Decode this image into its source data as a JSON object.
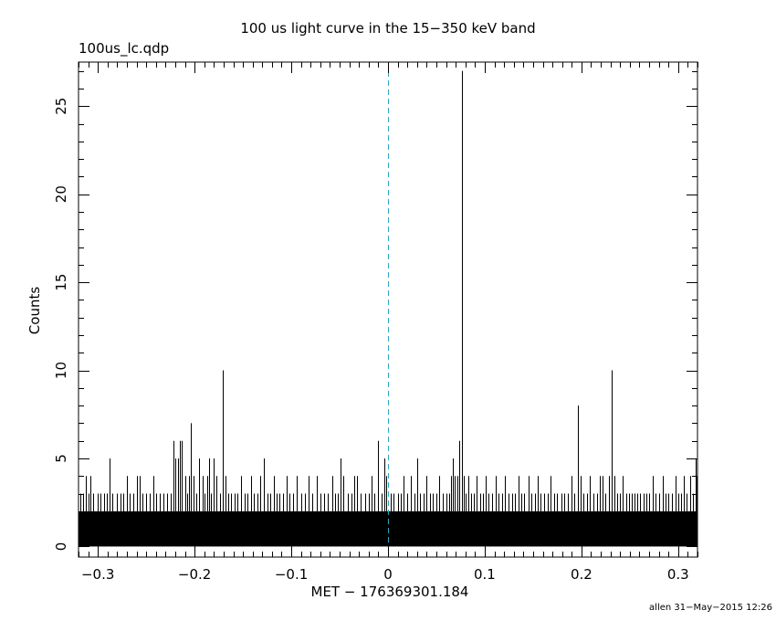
{
  "header": {
    "title": "100 us light curve in the 15−350 keV band",
    "filename": "100us_lc.qdp"
  },
  "footer": {
    "credit": "allen 31−May−2015 12:26"
  },
  "chart_data": {
    "type": "bar",
    "title": "100 us light curve in the 15−350 keV band",
    "xlabel": "MET − 176369301.184",
    "ylabel": "Counts",
    "xlim": [
      -0.32,
      0.32
    ],
    "ylim": [
      -0.6,
      27.5
    ],
    "x_ticks": [
      {
        "value": -0.3,
        "label": "−0.3"
      },
      {
        "value": -0.2,
        "label": "−0.2"
      },
      {
        "value": -0.1,
        "label": "−0.1"
      },
      {
        "value": 0,
        "label": "0"
      },
      {
        "value": 0.1,
        "label": "0.1"
      },
      {
        "value": 0.2,
        "label": "0.2"
      },
      {
        "value": 0.3,
        "label": "0.3"
      }
    ],
    "y_ticks": [
      {
        "value": 0,
        "label": "0"
      },
      {
        "value": 5,
        "label": "5"
      },
      {
        "value": 10,
        "label": "10"
      },
      {
        "value": 15,
        "label": "15"
      },
      {
        "value": 20,
        "label": "20"
      },
      {
        "value": 25,
        "label": "25"
      }
    ],
    "bin_width": 0.0001,
    "baseline_band_counts": 2,
    "reference_line": {
      "x": 0,
      "style": "dashed",
      "color": "#2aa8c0"
    },
    "series": [
      {
        "values": [
          [
            -0.318,
            3
          ],
          [
            -0.315,
            3
          ],
          [
            -0.312,
            4
          ],
          [
            -0.31,
            3
          ],
          [
            -0.308,
            4
          ],
          [
            -0.305,
            3
          ],
          [
            -0.3,
            3
          ],
          [
            -0.297,
            3
          ],
          [
            -0.294,
            3
          ],
          [
            -0.291,
            3
          ],
          [
            -0.288,
            5
          ],
          [
            -0.285,
            3
          ],
          [
            -0.28,
            3
          ],
          [
            -0.277,
            3
          ],
          [
            -0.274,
            3
          ],
          [
            -0.27,
            4
          ],
          [
            -0.267,
            3
          ],
          [
            -0.263,
            3
          ],
          [
            -0.26,
            4
          ],
          [
            -0.257,
            4
          ],
          [
            -0.254,
            3
          ],
          [
            -0.25,
            3
          ],
          [
            -0.246,
            3
          ],
          [
            -0.243,
            4
          ],
          [
            -0.24,
            3
          ],
          [
            -0.236,
            3
          ],
          [
            -0.232,
            3
          ],
          [
            -0.228,
            3
          ],
          [
            -0.225,
            3
          ],
          [
            -0.222,
            6
          ],
          [
            -0.22,
            5
          ],
          [
            -0.217,
            5
          ],
          [
            -0.215,
            6
          ],
          [
            -0.213,
            6
          ],
          [
            -0.21,
            4
          ],
          [
            -0.208,
            3
          ],
          [
            -0.206,
            4
          ],
          [
            -0.204,
            7
          ],
          [
            -0.201,
            4
          ],
          [
            -0.198,
            3
          ],
          [
            -0.195,
            5
          ],
          [
            -0.192,
            4
          ],
          [
            -0.19,
            3
          ],
          [
            -0.187,
            4
          ],
          [
            -0.185,
            5
          ],
          [
            -0.183,
            3
          ],
          [
            -0.18,
            5
          ],
          [
            -0.177,
            4
          ],
          [
            -0.174,
            3
          ],
          [
            -0.171,
            10
          ],
          [
            -0.168,
            4
          ],
          [
            -0.165,
            3
          ],
          [
            -0.162,
            3
          ],
          [
            -0.159,
            3
          ],
          [
            -0.156,
            3
          ],
          [
            -0.152,
            4
          ],
          [
            -0.148,
            3
          ],
          [
            -0.145,
            3
          ],
          [
            -0.142,
            4
          ],
          [
            -0.139,
            3
          ],
          [
            -0.135,
            3
          ],
          [
            -0.132,
            4
          ],
          [
            -0.128,
            5
          ],
          [
            -0.125,
            3
          ],
          [
            -0.122,
            3
          ],
          [
            -0.118,
            4
          ],
          [
            -0.115,
            3
          ],
          [
            -0.112,
            3
          ],
          [
            -0.109,
            3
          ],
          [
            -0.105,
            4
          ],
          [
            -0.102,
            3
          ],
          [
            -0.098,
            3
          ],
          [
            -0.094,
            4
          ],
          [
            -0.09,
            3
          ],
          [
            -0.086,
            3
          ],
          [
            -0.082,
            4
          ],
          [
            -0.078,
            3
          ],
          [
            -0.074,
            4
          ],
          [
            -0.07,
            3
          ],
          [
            -0.066,
            3
          ],
          [
            -0.062,
            3
          ],
          [
            -0.058,
            4
          ],
          [
            -0.055,
            3
          ],
          [
            -0.052,
            3
          ],
          [
            -0.049,
            5
          ],
          [
            -0.046,
            4
          ],
          [
            -0.042,
            3
          ],
          [
            -0.038,
            3
          ],
          [
            -0.035,
            4
          ],
          [
            -0.032,
            4
          ],
          [
            -0.028,
            3
          ],
          [
            -0.024,
            3
          ],
          [
            -0.02,
            3
          ],
          [
            -0.017,
            4
          ],
          [
            -0.014,
            3
          ],
          [
            -0.01,
            6
          ],
          [
            -0.007,
            3
          ],
          [
            -0.004,
            5
          ],
          [
            -0.002,
            4
          ],
          [
            0.003,
            3
          ],
          [
            0.006,
            3
          ],
          [
            0.01,
            3
          ],
          [
            0.013,
            3
          ],
          [
            0.016,
            4
          ],
          [
            0.02,
            3
          ],
          [
            0.024,
            4
          ],
          [
            0.027,
            3
          ],
          [
            0.03,
            5
          ],
          [
            0.033,
            3
          ],
          [
            0.037,
            3
          ],
          [
            0.04,
            4
          ],
          [
            0.043,
            3
          ],
          [
            0.046,
            3
          ],
          [
            0.05,
            3
          ],
          [
            0.053,
            4
          ],
          [
            0.057,
            3
          ],
          [
            0.06,
            3
          ],
          [
            0.063,
            3
          ],
          [
            0.065,
            4
          ],
          [
            0.067,
            5
          ],
          [
            0.069,
            4
          ],
          [
            0.072,
            4
          ],
          [
            0.074,
            6
          ],
          [
            0.076,
            27
          ],
          [
            0.078,
            4
          ],
          [
            0.08,
            3
          ],
          [
            0.083,
            4
          ],
          [
            0.086,
            3
          ],
          [
            0.089,
            3
          ],
          [
            0.092,
            4
          ],
          [
            0.095,
            3
          ],
          [
            0.098,
            3
          ],
          [
            0.101,
            4
          ],
          [
            0.104,
            3
          ],
          [
            0.108,
            3
          ],
          [
            0.111,
            4
          ],
          [
            0.114,
            3
          ],
          [
            0.118,
            3
          ],
          [
            0.121,
            4
          ],
          [
            0.125,
            3
          ],
          [
            0.128,
            3
          ],
          [
            0.131,
            3
          ],
          [
            0.135,
            4
          ],
          [
            0.138,
            3
          ],
          [
            0.141,
            3
          ],
          [
            0.145,
            4
          ],
          [
            0.148,
            3
          ],
          [
            0.152,
            3
          ],
          [
            0.155,
            4
          ],
          [
            0.158,
            3
          ],
          [
            0.161,
            3
          ],
          [
            0.165,
            3
          ],
          [
            0.168,
            4
          ],
          [
            0.172,
            3
          ],
          [
            0.175,
            3
          ],
          [
            0.179,
            3
          ],
          [
            0.182,
            3
          ],
          [
            0.186,
            3
          ],
          [
            0.19,
            4
          ],
          [
            0.193,
            3
          ],
          [
            0.196,
            8
          ],
          [
            0.199,
            4
          ],
          [
            0.202,
            3
          ],
          [
            0.206,
            3
          ],
          [
            0.209,
            4
          ],
          [
            0.212,
            3
          ],
          [
            0.216,
            3
          ],
          [
            0.219,
            4
          ],
          [
            0.222,
            4
          ],
          [
            0.225,
            3
          ],
          [
            0.228,
            4
          ],
          [
            0.231,
            10
          ],
          [
            0.234,
            4
          ],
          [
            0.237,
            3
          ],
          [
            0.24,
            3
          ],
          [
            0.243,
            4
          ],
          [
            0.246,
            3
          ],
          [
            0.249,
            3
          ],
          [
            0.252,
            3
          ],
          [
            0.255,
            3
          ],
          [
            0.258,
            3
          ],
          [
            0.261,
            3
          ],
          [
            0.264,
            3
          ],
          [
            0.267,
            3
          ],
          [
            0.27,
            3
          ],
          [
            0.274,
            4
          ],
          [
            0.277,
            3
          ],
          [
            0.28,
            3
          ],
          [
            0.284,
            4
          ],
          [
            0.287,
            3
          ],
          [
            0.29,
            3
          ],
          [
            0.294,
            3
          ],
          [
            0.297,
            4
          ],
          [
            0.3,
            3
          ],
          [
            0.303,
            3
          ],
          [
            0.306,
            4
          ],
          [
            0.309,
            3
          ],
          [
            0.312,
            4
          ],
          [
            0.315,
            3
          ],
          [
            0.318,
            5
          ],
          [
            0.319,
            4
          ]
        ]
      }
    ]
  }
}
